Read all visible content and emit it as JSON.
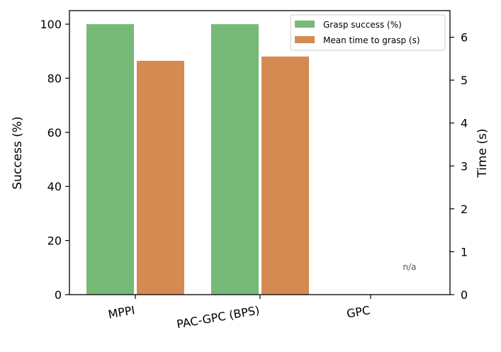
{
  "chart_data": {
    "type": "bar",
    "categories": [
      "MPPI",
      "PAC-GPC (BPS)",
      "GPC"
    ],
    "series": [
      {
        "name": "Grasp success (%)",
        "axis": "left",
        "color": "#77b977",
        "values": [
          100,
          100,
          null
        ]
      },
      {
        "name": "Mean time to grasp (s)",
        "axis": "right",
        "color": "#d58a52",
        "values": [
          5.45,
          5.55,
          null
        ]
      }
    ],
    "ylabel": "Success (%)",
    "y2label": "Time (s)",
    "ylim": [
      0,
      105
    ],
    "y2lim": [
      0,
      6.62
    ],
    "yticks": [
      0,
      20,
      40,
      60,
      80,
      100
    ],
    "y2ticks": [
      0,
      1,
      2,
      3,
      4,
      5,
      6
    ],
    "annotations": [
      {
        "category": "GPC",
        "text": "n/a"
      }
    ],
    "grid": false,
    "legend_position": "top-right"
  }
}
